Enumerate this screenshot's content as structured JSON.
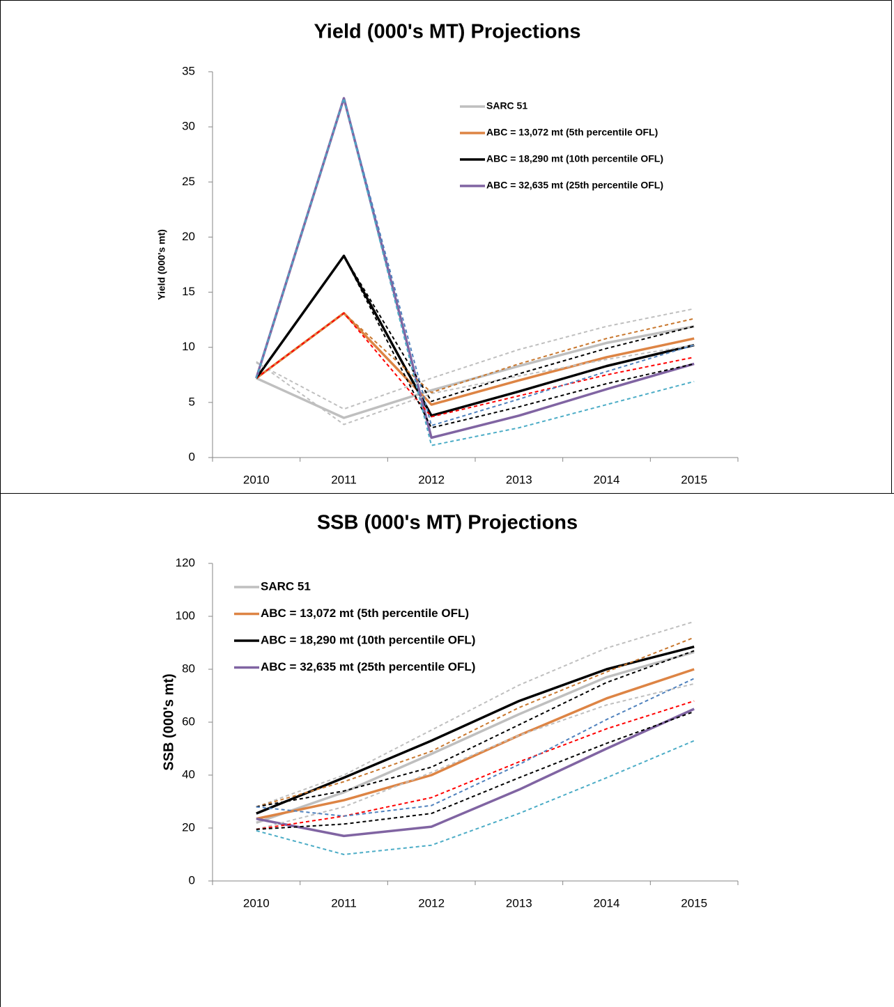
{
  "chart_data": [
    {
      "type": "line",
      "title": "Yield (000's MT) Projections",
      "y_label": "Yield (000's mt)",
      "categories": [
        "2010",
        "2011",
        "2012",
        "2013",
        "2014",
        "2015"
      ],
      "ylim": [
        0,
        35
      ],
      "yticks": [
        0,
        5,
        10,
        15,
        20,
        25,
        30,
        35
      ],
      "grid": false,
      "legend": "upper right",
      "series": [
        {
          "name": "SARC 51",
          "color": "#bfbfbf",
          "values": [
            7.2,
            3.6,
            6.1,
            8.3,
            10.4,
            11.9
          ]
        },
        {
          "name": "ABC = 13,072 mt (5th percentile OFL)",
          "color": "#dd8444",
          "values": [
            7.2,
            13.1,
            4.8,
            7.0,
            9.1,
            10.8
          ]
        },
        {
          "name": "ABC = 18,290 mt (10th percentile OFL)",
          "color": "#000000",
          "values": [
            7.2,
            18.3,
            3.8,
            6.0,
            8.3,
            10.2
          ]
        },
        {
          "name": "ABC = 32,635 mt (25th percentile OFL)",
          "color": "#8064a2",
          "values": [
            7.2,
            32.6,
            1.8,
            3.8,
            6.2,
            8.5
          ]
        },
        {
          "color": "#bfbfbf",
          "dashed": true,
          "values": [
            8.6,
            4.4,
            7.2,
            9.8,
            11.9,
            13.5
          ]
        },
        {
          "color": "#bfbfbf",
          "dashed": true,
          "values": [
            8.7,
            3.0,
            5.8,
            7.4,
            8.9,
            10.2
          ]
        },
        {
          "color": "#c8772e",
          "dashed": true,
          "values": [
            7.2,
            13.1,
            5.9,
            8.5,
            10.8,
            12.6
          ]
        },
        {
          "color": "#ff0000",
          "dashed": true,
          "values": [
            7.2,
            13.1,
            3.7,
            5.6,
            7.5,
            9.1
          ]
        },
        {
          "color": "#000000",
          "dashed": true,
          "values": [
            7.2,
            18.3,
            5.1,
            7.6,
            9.9,
            11.9
          ]
        },
        {
          "color": "#000000",
          "dashed": true,
          "values": [
            7.2,
            18.3,
            2.7,
            4.6,
            6.7,
            8.5
          ]
        },
        {
          "color": "#4f81bd",
          "dashed": true,
          "values": [
            7.2,
            32.6,
            2.9,
            5.3,
            7.8,
            10.2
          ]
        },
        {
          "color": "#4bacc6",
          "dashed": true,
          "values": [
            7.2,
            32.6,
            1.1,
            2.7,
            4.8,
            6.9
          ]
        }
      ]
    },
    {
      "type": "line",
      "title": "SSB (000's MT) Projections",
      "y_label": "SSB (000's mt)",
      "categories": [
        "2010",
        "2011",
        "2012",
        "2013",
        "2014",
        "2015"
      ],
      "ylim": [
        0,
        120
      ],
      "yticks": [
        0,
        20,
        40,
        60,
        80,
        100,
        120
      ],
      "grid": false,
      "legend": "upper left",
      "series": [
        {
          "name": "SARC 51",
          "color": "#bfbfbf",
          "values": [
            22,
            33.5,
            48,
            63,
            77,
            86.5
          ]
        },
        {
          "name": "ABC = 13,072 mt (5th percentile OFL)",
          "color": "#dd8444",
          "values": [
            23.5,
            30.5,
            40,
            55,
            69,
            80
          ]
        },
        {
          "name": "ABC = 18,290 mt (10th percentile OFL)",
          "color": "#000000",
          "values": [
            25.5,
            39,
            53,
            68,
            80,
            88.5
          ]
        },
        {
          "name": "ABC = 32,635 mt (25th percentile OFL)",
          "color": "#8064a2",
          "values": [
            23.5,
            17,
            20.5,
            34.5,
            50,
            65
          ]
        },
        {
          "color": "#bfbfbf",
          "dashed": true,
          "values": [
            28,
            40,
            57,
            74,
            88,
            98
          ]
        },
        {
          "color": "#bfbfbf",
          "dashed": true,
          "values": [
            19.5,
            28,
            41,
            55,
            66.5,
            74.5
          ]
        },
        {
          "color": "#c8772e",
          "dashed": true,
          "values": [
            28,
            37.5,
            49,
            65.5,
            79,
            92
          ]
        },
        {
          "color": "#ff0000",
          "dashed": true,
          "values": [
            19.5,
            24.5,
            31.5,
            45,
            57.5,
            68
          ]
        },
        {
          "color": "#000000",
          "dashed": true,
          "values": [
            28,
            34,
            43,
            59,
            75,
            87
          ]
        },
        {
          "color": "#000000",
          "dashed": true,
          "values": [
            19.5,
            21.5,
            25.5,
            39,
            52,
            64
          ]
        },
        {
          "color": "#4f81bd",
          "dashed": true,
          "values": [
            28,
            24.5,
            28.5,
            44,
            61,
            76.5
          ]
        },
        {
          "color": "#4bacc6",
          "dashed": true,
          "values": [
            19,
            10,
            13.5,
            25.5,
            39,
            53
          ]
        }
      ]
    }
  ]
}
